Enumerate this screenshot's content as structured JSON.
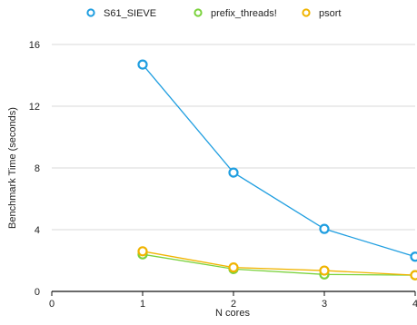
{
  "chart_data": {
    "type": "line",
    "title": "",
    "xlabel": "N cores",
    "ylabel": "Benchmark Time (seconds)",
    "x_ticks": [
      "0",
      "1",
      "2",
      "3",
      "4"
    ],
    "y_ticks": [
      "0",
      "4",
      "8",
      "12",
      "16"
    ],
    "xlim": [
      0,
      4
    ],
    "ylim": [
      0,
      16
    ],
    "grid": "horizontal",
    "legend_position": "top",
    "series": [
      {
        "name": "S61_SIEVE",
        "color": "#1f9ee0",
        "x": [
          1,
          2,
          3,
          4
        ],
        "y": [
          14.7,
          7.7,
          4.05,
          2.25
        ]
      },
      {
        "name": "prefix_threads!",
        "color": "#7ad23c",
        "x": [
          1,
          2,
          3,
          4
        ],
        "y": [
          2.4,
          1.45,
          1.1,
          1.05
        ]
      },
      {
        "name": "psort",
        "color": "#f0b400",
        "x": [
          1,
          2,
          3,
          4
        ],
        "y": [
          2.6,
          1.55,
          1.35,
          1.05
        ]
      }
    ]
  }
}
